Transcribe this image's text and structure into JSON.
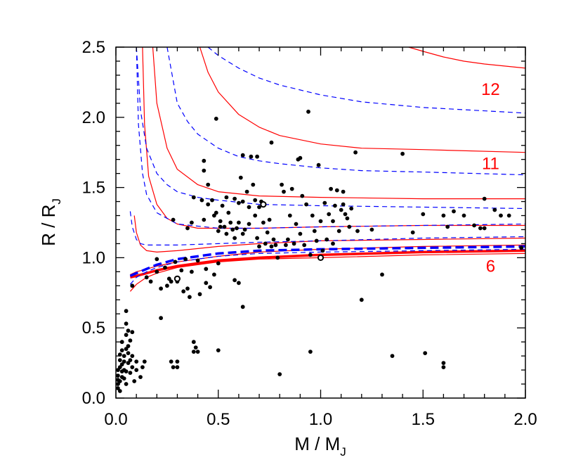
{
  "chart_data": {
    "type": "scatter",
    "xlim": [
      0.0,
      2.0
    ],
    "ylim": [
      0.0,
      2.5
    ],
    "x_ticks": [
      "0.0",
      "0.5",
      "1.0",
      "1.5",
      "2.0"
    ],
    "y_ticks": [
      "0.0",
      "0.5",
      "1.0",
      "1.5",
      "2.0",
      "2.5"
    ],
    "xlabel": {
      "main": "M / M",
      "sub": "J"
    },
    "ylabel": {
      "main": "R / R",
      "sub": "J"
    },
    "colors": {
      "solid_curves": "#ff0000",
      "dashed_curves": "#0000ff",
      "points": "#000000"
    },
    "curve_labels": [
      {
        "text": "12",
        "x": 1.83,
        "y": 2.2
      },
      {
        "text": "11",
        "x": 1.83,
        "y": 1.67
      },
      {
        "text": "6",
        "x": 1.83,
        "y": 0.94
      }
    ],
    "series": [
      {
        "name": "red-solid-1",
        "style": "solid",
        "color": "#ff0000",
        "width": 1.2,
        "x": [
          0.07,
          0.1,
          0.15,
          0.2,
          0.3,
          0.5,
          0.7,
          1.0,
          1.5,
          2.0
        ],
        "y": [
          0.76,
          0.81,
          0.86,
          0.89,
          0.93,
          0.97,
          0.99,
          1.0,
          1.02,
          1.03
        ]
      },
      {
        "name": "red-solid-thick",
        "style": "solid",
        "color": "#ff0000",
        "width": 3.5,
        "x": [
          0.07,
          0.1,
          0.15,
          0.2,
          0.3,
          0.5,
          0.7,
          1.0,
          1.5,
          2.0
        ],
        "y": [
          0.86,
          0.87,
          0.89,
          0.91,
          0.94,
          0.98,
          1.0,
          1.02,
          1.04,
          1.05
        ]
      },
      {
        "name": "red-solid-2",
        "style": "solid",
        "color": "#ff0000",
        "width": 1.2,
        "x": [
          0.07,
          0.1,
          0.15,
          0.2,
          0.3,
          0.5,
          0.7,
          1.0,
          1.5,
          2.0
        ],
        "y": [
          0.88,
          0.9,
          0.92,
          0.94,
          0.97,
          1.01,
          1.04,
          1.06,
          1.08,
          1.09
        ]
      },
      {
        "name": "red-solid-3",
        "style": "solid",
        "color": "#ff0000",
        "width": 1.2,
        "x": [
          0.09,
          0.1,
          0.12,
          0.15,
          0.2,
          0.3,
          0.5,
          0.7,
          1.0,
          1.5,
          2.0
        ],
        "y": [
          1.3,
          1.18,
          1.09,
          1.05,
          1.04,
          1.05,
          1.08,
          1.1,
          1.12,
          1.13,
          1.14
        ]
      },
      {
        "name": "red-solid-4",
        "style": "solid",
        "color": "#ff0000",
        "width": 1.2,
        "x": [
          0.13,
          0.14,
          0.16,
          0.2,
          0.25,
          0.3,
          0.4,
          0.5,
          0.7,
          1.0,
          1.5,
          2.0
        ],
        "y": [
          2.5,
          1.95,
          1.58,
          1.38,
          1.28,
          1.24,
          1.21,
          1.21,
          1.21,
          1.22,
          1.23,
          1.23
        ]
      },
      {
        "name": "red-solid-5",
        "style": "solid",
        "color": "#ff0000",
        "width": 1.2,
        "x": [
          0.18,
          0.2,
          0.25,
          0.3,
          0.4,
          0.5,
          0.7,
          1.0,
          1.5,
          2.0
        ],
        "y": [
          2.5,
          2.1,
          1.78,
          1.63,
          1.52,
          1.47,
          1.44,
          1.43,
          1.42,
          1.42
        ]
      },
      {
        "name": "red-solid-6",
        "style": "solid",
        "color": "#ff0000",
        "width": 1.2,
        "x": [
          0.41,
          0.45,
          0.5,
          0.6,
          0.7,
          0.8,
          1.0,
          1.2,
          1.5,
          2.0
        ],
        "y": [
          2.5,
          2.32,
          2.18,
          2.02,
          1.93,
          1.87,
          1.81,
          1.78,
          1.77,
          1.75
        ]
      },
      {
        "name": "red-solid-7",
        "style": "solid",
        "color": "#ff0000",
        "width": 1.2,
        "x": [
          1.43,
          1.5,
          1.6,
          1.7,
          1.8,
          2.0
        ],
        "y": [
          2.5,
          2.47,
          2.43,
          2.4,
          2.38,
          2.35
        ]
      },
      {
        "name": "blue-dashed-1",
        "style": "dashed",
        "color": "#0000ff",
        "width": 1.2,
        "x": [
          0.07,
          0.1,
          0.15,
          0.2,
          0.3,
          0.5,
          0.7,
          1.0,
          1.5,
          2.0
        ],
        "y": [
          0.81,
          0.86,
          0.9,
          0.93,
          0.97,
          1.01,
          1.03,
          1.04,
          1.05,
          1.06
        ]
      },
      {
        "name": "blue-dashed-thick",
        "style": "dashed",
        "color": "#0000ff",
        "width": 3.5,
        "x": [
          0.07,
          0.1,
          0.15,
          0.2,
          0.3,
          0.5,
          0.7,
          1.0,
          1.5,
          2.0
        ],
        "y": [
          0.87,
          0.89,
          0.92,
          0.95,
          0.99,
          1.03,
          1.05,
          1.06,
          1.07,
          1.08
        ]
      },
      {
        "name": "blue-dashed-2",
        "style": "dashed",
        "color": "#0000ff",
        "width": 1.2,
        "x": [
          0.07,
          0.08,
          0.1,
          0.12,
          0.15,
          0.2,
          0.3,
          0.5,
          0.7,
          1.0,
          1.5,
          2.0
        ],
        "y": [
          1.33,
          1.22,
          1.13,
          1.1,
          1.09,
          1.09,
          1.09,
          1.1,
          1.11,
          1.12,
          1.14,
          1.15
        ]
      },
      {
        "name": "blue-dashed-3",
        "style": "dashed",
        "color": "#0000ff",
        "width": 1.2,
        "x": [
          0.1,
          0.11,
          0.13,
          0.15,
          0.2,
          0.3,
          0.5,
          0.7,
          1.0,
          1.5,
          2.0
        ],
        "y": [
          2.5,
          1.95,
          1.6,
          1.45,
          1.32,
          1.24,
          1.21,
          1.21,
          1.22,
          1.23,
          1.24
        ]
      },
      {
        "name": "blue-dashed-4",
        "style": "dashed",
        "color": "#0000ff",
        "width": 1.2,
        "x": [
          0.1,
          0.12,
          0.15,
          0.2,
          0.25,
          0.3,
          0.4,
          0.5,
          0.7,
          1.0,
          1.5,
          2.0
        ],
        "y": [
          2.5,
          2.05,
          1.78,
          1.6,
          1.52,
          1.47,
          1.43,
          1.41,
          1.38,
          1.37,
          1.36,
          1.35
        ]
      },
      {
        "name": "blue-dashed-5",
        "style": "dashed",
        "color": "#0000ff",
        "width": 1.2,
        "x": [
          0.25,
          0.3,
          0.35,
          0.4,
          0.5,
          0.6,
          0.7,
          0.8,
          1.0,
          1.2,
          1.5,
          2.0
        ],
        "y": [
          2.5,
          2.1,
          1.97,
          1.88,
          1.78,
          1.72,
          1.69,
          1.67,
          1.64,
          1.62,
          1.61,
          1.59
        ]
      },
      {
        "name": "blue-dashed-6",
        "style": "dashed",
        "color": "#0000ff",
        "width": 1.2,
        "x": [
          0.45,
          0.5,
          0.6,
          0.7,
          0.8,
          1.0,
          1.2,
          1.5,
          2.0
        ],
        "y": [
          2.5,
          2.44,
          2.35,
          2.28,
          2.23,
          2.16,
          2.11,
          2.07,
          2.03
        ]
      }
    ],
    "points": [
      [
        0.01,
        0.07
      ],
      [
        0.01,
        0.1
      ],
      [
        0.01,
        0.13
      ],
      [
        0.01,
        0.16
      ],
      [
        0.01,
        0.2
      ],
      [
        0.02,
        0.05
      ],
      [
        0.02,
        0.12
      ],
      [
        0.02,
        0.22
      ],
      [
        0.02,
        0.27
      ],
      [
        0.02,
        0.31
      ],
      [
        0.03,
        0.15
      ],
      [
        0.03,
        0.19
      ],
      [
        0.03,
        0.24
      ],
      [
        0.03,
        0.34
      ],
      [
        0.03,
        0.4
      ],
      [
        0.04,
        0.14
      ],
      [
        0.04,
        0.2
      ],
      [
        0.04,
        0.26
      ],
      [
        0.04,
        0.3
      ],
      [
        0.05,
        0.1
      ],
      [
        0.05,
        0.19
      ],
      [
        0.05,
        0.35
      ],
      [
        0.05,
        0.45
      ],
      [
        0.05,
        0.53
      ],
      [
        0.05,
        0.62
      ],
      [
        0.06,
        0.25
      ],
      [
        0.06,
        0.32
      ],
      [
        0.06,
        0.37
      ],
      [
        0.06,
        0.48
      ],
      [
        0.07,
        0.18
      ],
      [
        0.07,
        0.27
      ],
      [
        0.07,
        0.41
      ],
      [
        0.08,
        0.22
      ],
      [
        0.08,
        0.3
      ],
      [
        0.08,
        0.47
      ],
      [
        0.08,
        0.8
      ],
      [
        0.09,
        0.12
      ],
      [
        0.1,
        0.2
      ],
      [
        0.1,
        0.26
      ],
      [
        0.12,
        0.15
      ],
      [
        0.13,
        0.22
      ],
      [
        0.14,
        0.26
      ],
      [
        0.15,
        0.86
      ],
      [
        0.17,
        0.83
      ],
      [
        0.2,
        0.9
      ],
      [
        0.2,
        0.99
      ],
      [
        0.22,
        0.78
      ],
      [
        0.22,
        0.57
      ],
      [
        0.24,
        0.93
      ],
      [
        0.25,
        0.8
      ],
      [
        0.26,
        0.85
      ],
      [
        0.27,
        0.83
      ],
      [
        0.27,
        0.26
      ],
      [
        0.28,
        1.27
      ],
      [
        0.28,
        0.22
      ],
      [
        0.29,
        0.97
      ],
      [
        0.3,
        0.83
      ],
      [
        0.3,
        0.26
      ],
      [
        0.3,
        0.22
      ],
      [
        0.32,
        0.91
      ],
      [
        0.33,
        0.76
      ],
      [
        0.34,
        0.99
      ],
      [
        0.35,
        1.21
      ],
      [
        0.35,
        0.78
      ],
      [
        0.36,
        0.72
      ],
      [
        0.37,
        1.25
      ],
      [
        0.37,
        0.9
      ],
      [
        0.38,
        1.43
      ],
      [
        0.38,
        0.4
      ],
      [
        0.38,
        0.33
      ],
      [
        0.39,
        0.36
      ],
      [
        0.4,
        0.98
      ],
      [
        0.4,
        0.33
      ],
      [
        0.41,
        0.74
      ],
      [
        0.42,
        1.41
      ],
      [
        0.43,
        1.69
      ],
      [
        0.43,
        1.62
      ],
      [
        0.43,
        1.27
      ],
      [
        0.44,
        0.82
      ],
      [
        0.44,
        0.92
      ],
      [
        0.45,
        1.52
      ],
      [
        0.45,
        1.38
      ],
      [
        0.46,
        0.79
      ],
      [
        0.47,
        1.41
      ],
      [
        0.48,
        1.3
      ],
      [
        0.48,
        0.88
      ],
      [
        0.49,
        1.99
      ],
      [
        0.49,
        1.32
      ],
      [
        0.5,
        1.19
      ],
      [
        0.5,
        0.96
      ],
      [
        0.5,
        0.34
      ],
      [
        0.51,
        1.26
      ],
      [
        0.51,
        1.22
      ],
      [
        0.52,
        1.37
      ],
      [
        0.53,
        1.22
      ],
      [
        0.54,
        1.43
      ],
      [
        0.54,
        1.17
      ],
      [
        0.55,
        1.32
      ],
      [
        0.56,
        1.25
      ],
      [
        0.57,
        1.2
      ],
      [
        0.58,
        1.42
      ],
      [
        0.58,
        1.14
      ],
      [
        0.58,
        0.84
      ],
      [
        0.59,
        1.21
      ],
      [
        0.6,
        1.39
      ],
      [
        0.6,
        1.25
      ],
      [
        0.6,
        0.82
      ],
      [
        0.61,
        1.57
      ],
      [
        0.62,
        1.73
      ],
      [
        0.62,
        1.4
      ],
      [
        0.62,
        1.17
      ],
      [
        0.62,
        0.65
      ],
      [
        0.63,
        1.2
      ],
      [
        0.64,
        1.47
      ],
      [
        0.65,
        1.36
      ],
      [
        0.65,
        1.24
      ],
      [
        0.66,
        1.72
      ],
      [
        0.67,
        1.52
      ],
      [
        0.68,
        1.41
      ],
      [
        0.68,
        1.3
      ],
      [
        0.69,
        1.72
      ],
      [
        0.69,
        1.14
      ],
      [
        0.7,
        1.36
      ],
      [
        0.7,
        1.08
      ],
      [
        0.71,
        1.4
      ],
      [
        0.72,
        1.25
      ],
      [
        0.73,
        1.1
      ],
      [
        0.74,
        1.18
      ],
      [
        0.75,
        1.27
      ],
      [
        0.76,
        1.82
      ],
      [
        0.76,
        1.08
      ],
      [
        0.77,
        1.13
      ],
      [
        0.78,
        1.09
      ],
      [
        0.79,
        1.0
      ],
      [
        0.8,
        0.17
      ],
      [
        0.81,
        1.52
      ],
      [
        0.82,
        1.47
      ],
      [
        0.83,
        1.09
      ],
      [
        0.84,
        1.13
      ],
      [
        0.85,
        1.3
      ],
      [
        0.86,
        1.49
      ],
      [
        0.87,
        1.1
      ],
      [
        0.88,
        1.24
      ],
      [
        0.89,
        1.7
      ],
      [
        0.9,
        1.71
      ],
      [
        0.9,
        1.17
      ],
      [
        0.91,
        1.44
      ],
      [
        0.92,
        1.09
      ],
      [
        0.93,
        1.38
      ],
      [
        0.94,
        2.04
      ],
      [
        0.95,
        1.02
      ],
      [
        0.95,
        0.33
      ],
      [
        0.96,
        1.3
      ],
      [
        0.97,
        1.19
      ],
      [
        0.98,
        1.12
      ],
      [
        0.99,
        1.66
      ],
      [
        1.0,
        1.26
      ],
      [
        1.01,
        1.05
      ],
      [
        1.02,
        1.39
      ],
      [
        1.03,
        1.13
      ],
      [
        1.04,
        1.31
      ],
      [
        1.05,
        1.49
      ],
      [
        1.06,
        1.26
      ],
      [
        1.06,
        1.1
      ],
      [
        1.07,
        1.37
      ],
      [
        1.08,
        1.48
      ],
      [
        1.09,
        1.19
      ],
      [
        1.1,
        1.34
      ],
      [
        1.11,
        1.47
      ],
      [
        1.11,
        1.38
      ],
      [
        1.12,
        1.31
      ],
      [
        1.13,
        1.28
      ],
      [
        1.14,
        1.22
      ],
      [
        1.15,
        1.35
      ],
      [
        1.17,
        1.75
      ],
      [
        1.18,
        1.19
      ],
      [
        1.2,
        0.7
      ],
      [
        1.25,
        1.2
      ],
      [
        1.3,
        0.88
      ],
      [
        1.35,
        0.3
      ],
      [
        1.4,
        1.74
      ],
      [
        1.45,
        1.18
      ],
      [
        1.5,
        1.31
      ],
      [
        1.51,
        0.32
      ],
      [
        1.6,
        1.3
      ],
      [
        1.6,
        0.25
      ],
      [
        1.6,
        0.22
      ],
      [
        1.62,
        1.22
      ],
      [
        1.65,
        1.33
      ],
      [
        1.7,
        1.3
      ],
      [
        1.75,
        1.23
      ],
      [
        1.78,
        1.21
      ],
      [
        1.8,
        1.21
      ],
      [
        1.8,
        1.42
      ],
      [
        1.85,
        1.34
      ],
      [
        1.88,
        1.3
      ],
      [
        1.92,
        1.3
      ],
      [
        1.98,
        1.07
      ]
    ],
    "open_points": [
      [
        0.3,
        0.85
      ],
      [
        0.72,
        1.38
      ],
      [
        1.0,
        1.0
      ]
    ]
  }
}
